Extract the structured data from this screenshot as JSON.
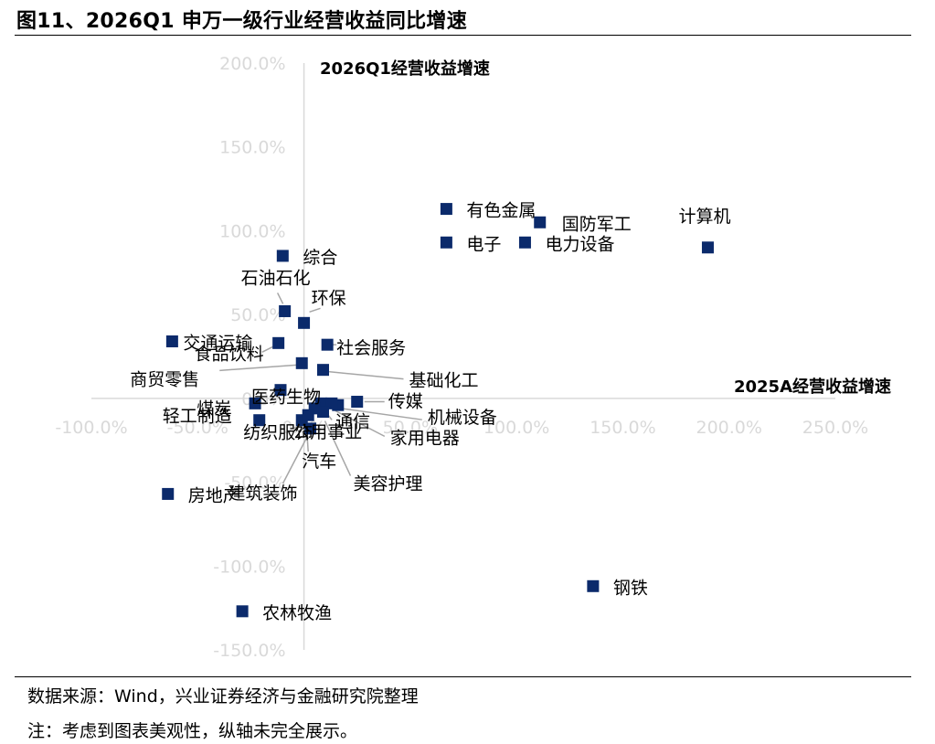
{
  "title": "图11、2026Q1 申万一级行业经营收益同比增速",
  "footer": {
    "source": "数据来源：Wind，兴业证券经济与金融研究院整理",
    "note": "注：考虑到图表美观性，纵轴未完全展示。"
  },
  "colors": {
    "marker": "#0b2a6b",
    "axis": "#d9d9d9",
    "tick": "#d9d9d9",
    "leader": "#a6a6a6"
  },
  "chart_data": {
    "type": "scatter",
    "xlabel": "2025A经营收益增速",
    "ylabel": "2026Q1经营收益增速",
    "xlim": [
      -100,
      250
    ],
    "ylim": [
      -150,
      200
    ],
    "x_ticks": [
      "-100.0%",
      "-50.0%",
      "0.0%",
      "50.0%",
      "100.0%",
      "150.0%",
      "200.0%",
      "250.0%"
    ],
    "y_ticks": [
      "200.0%",
      "150.0%",
      "100.0%",
      "50.0%",
      "0.0%",
      "-50.0%",
      "-100.0%",
      "-150.0%"
    ],
    "x_tick_values": [
      -100,
      -50,
      0,
      50,
      100,
      150,
      200,
      250
    ],
    "y_tick_values": [
      200,
      150,
      100,
      50,
      0,
      -50,
      -100,
      -150
    ],
    "points": [
      {
        "name": "有色金属",
        "x": 67,
        "y": 113
      },
      {
        "name": "国防军工",
        "x": 111,
        "y": 105
      },
      {
        "name": "计算机",
        "x": 190,
        "y": 90
      },
      {
        "name": "电子",
        "x": 67,
        "y": 93
      },
      {
        "name": "电力设备",
        "x": 104,
        "y": 93
      },
      {
        "name": "综合",
        "x": -10,
        "y": 85
      },
      {
        "name": "环保",
        "x": 0,
        "y": 45
      },
      {
        "name": "石油石化",
        "x": -9,
        "y": 52
      },
      {
        "name": "交通运输",
        "x": -62,
        "y": 34
      },
      {
        "name": "社会服务",
        "x": 11,
        "y": 32
      },
      {
        "name": "食品饮料",
        "x": -12,
        "y": 33
      },
      {
        "name": "基础化工",
        "x": 9,
        "y": 17
      },
      {
        "name": "商贸零售",
        "x": -1,
        "y": 21
      },
      {
        "name": "医药生物",
        "x": -11,
        "y": 5
      },
      {
        "name": "传媒",
        "x": 25,
        "y": -2
      },
      {
        "name": "煤炭",
        "x": -23,
        "y": -3
      },
      {
        "name": "机械设备",
        "x": 16,
        "y": -4
      },
      {
        "name": "通信",
        "x": 8,
        "y": -3
      },
      {
        "name": "轻工制造",
        "x": -21,
        "y": -13
      },
      {
        "name": "纺织服饰",
        "x": -1,
        "y": -13
      },
      {
        "name": "公用事业",
        "x": 5,
        "y": -6
      },
      {
        "name": "家用电器",
        "x": 13,
        "y": -3
      },
      {
        "name": "建筑装饰",
        "x": 3,
        "y": -18
      },
      {
        "name": "汽车",
        "x": 2,
        "y": -10
      },
      {
        "name": "美容护理",
        "x": 9,
        "y": -8
      },
      {
        "name": "房地产",
        "x": -64,
        "y": -57
      },
      {
        "name": "钢铁",
        "x": 136,
        "y": -112
      },
      {
        "name": "农林牧渔",
        "x": -29,
        "y": -127
      }
    ]
  }
}
